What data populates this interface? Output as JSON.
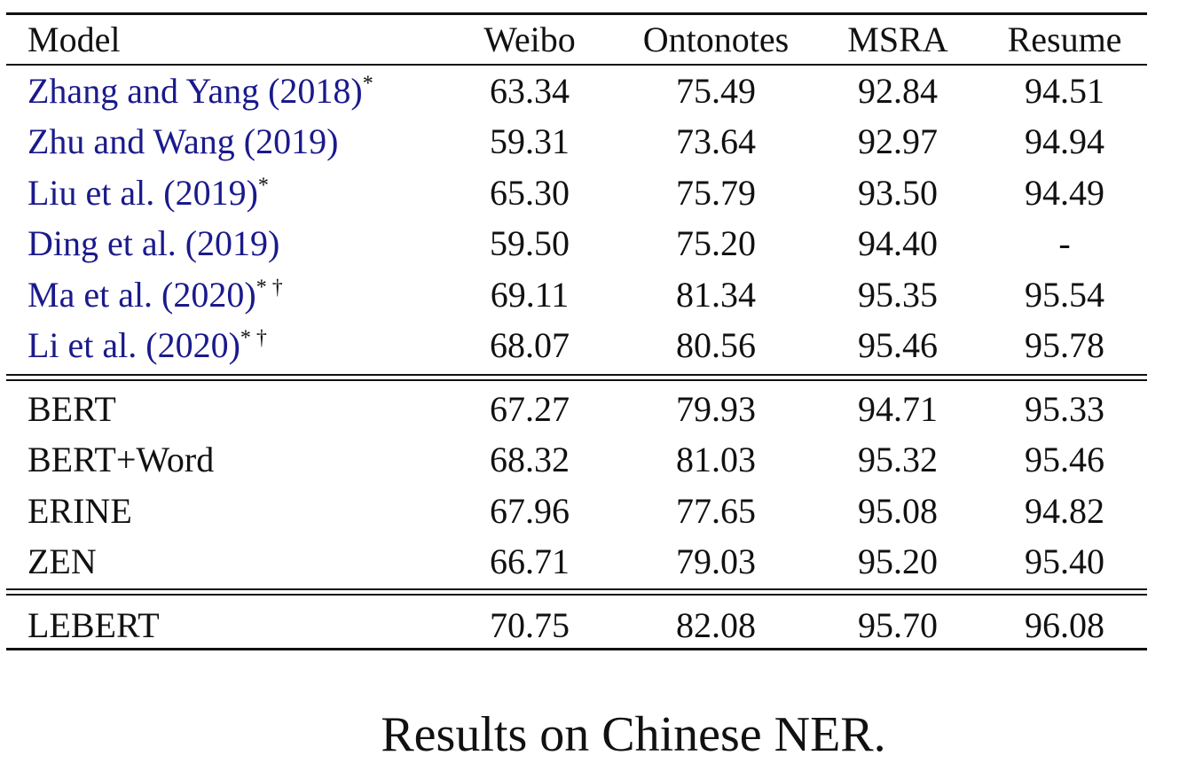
{
  "table": {
    "headers": [
      "Model",
      "Weibo",
      "Ontonotes",
      "MSRA",
      "Resume"
    ],
    "groups": [
      {
        "rows": [
          {
            "model": "Zhang and Yang (2018)",
            "cite": true,
            "marks": "*",
            "values": [
              "63.34",
              "75.49",
              "92.84",
              "94.51"
            ]
          },
          {
            "model": "Zhu and Wang (2019)",
            "cite": true,
            "marks": "",
            "values": [
              "59.31",
              "73.64",
              "92.97",
              "94.94"
            ]
          },
          {
            "model": "Liu et al. (2019)",
            "cite": true,
            "marks": "*",
            "values": [
              "65.30",
              "75.79",
              "93.50",
              "94.49"
            ]
          },
          {
            "model": "Ding et al. (2019)",
            "cite": true,
            "marks": "",
            "values": [
              "59.50",
              "75.20",
              "94.40",
              "-"
            ]
          },
          {
            "model": "Ma et al. (2020)",
            "cite": true,
            "marks": "* †",
            "values": [
              "69.11",
              "81.34",
              "95.35",
              "95.54"
            ]
          },
          {
            "model": "Li et al. (2020)",
            "cite": true,
            "marks": "* †",
            "values": [
              "68.07",
              "80.56",
              "95.46",
              "95.78"
            ]
          }
        ]
      },
      {
        "rows": [
          {
            "model": "BERT",
            "cite": false,
            "marks": "",
            "values": [
              "67.27",
              "79.93",
              "94.71",
              "95.33"
            ]
          },
          {
            "model": "BERT+Word",
            "cite": false,
            "marks": "",
            "values": [
              "68.32",
              "81.03",
              "95.32",
              "95.46"
            ]
          },
          {
            "model": "ERINE",
            "cite": false,
            "marks": "",
            "values": [
              "67.96",
              "77.65",
              "95.08",
              "94.82"
            ]
          },
          {
            "model": "ZEN",
            "cite": false,
            "marks": "",
            "values": [
              "66.71",
              "79.03",
              "95.20",
              "95.40"
            ]
          }
        ]
      },
      {
        "rows": [
          {
            "model": "LEBERT",
            "cite": false,
            "marks": "",
            "bold_values": true,
            "values": [
              "70.75",
              "82.08",
              "95.70",
              "96.08"
            ]
          }
        ]
      }
    ]
  },
  "caption": "Results on Chinese NER.",
  "colors": {
    "citation": "#1a1a8c",
    "text": "#111111"
  }
}
